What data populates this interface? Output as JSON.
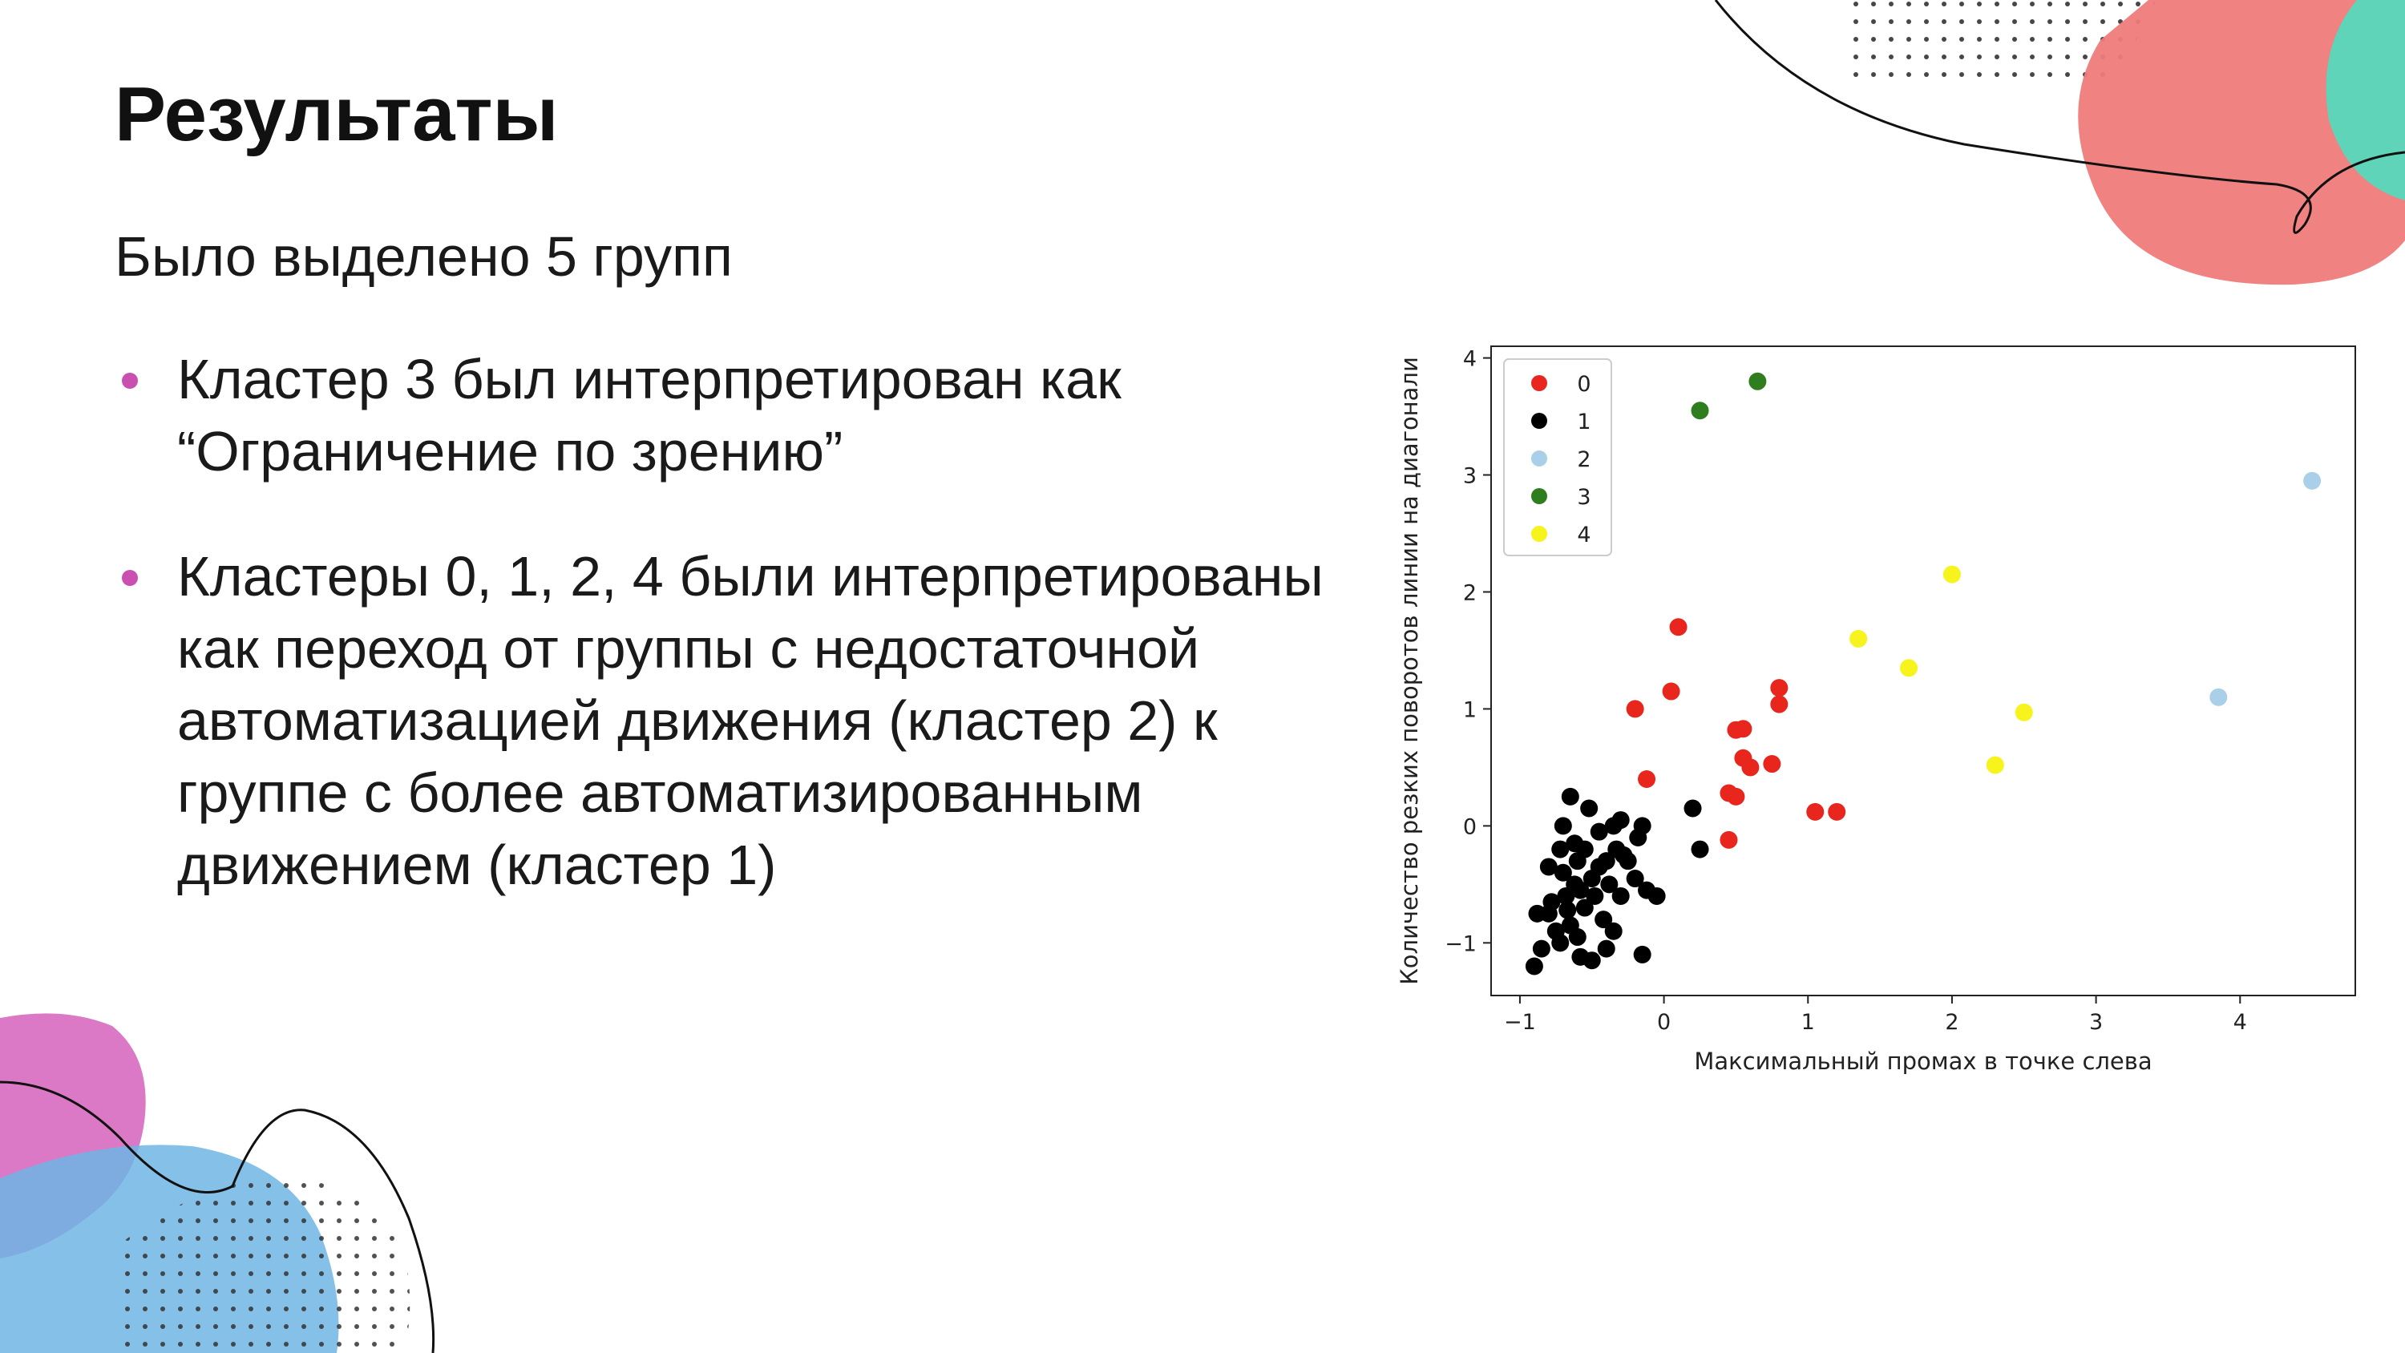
{
  "slide": {
    "title": "Результаты",
    "subtitle": "Было выделено 5 групп",
    "bullets": [
      {
        "text": "Кластер 3 был интерпретирован как “Ограничение по зрению”"
      },
      {
        "text": "Кластеры 0, 1, 2, 4 были интерпретированы как переход от группы с недостаточной автоматизацией движения (кластер 2) к группе с более автоматизированным движением (кластер 1)"
      }
    ],
    "colors": {
      "bullet": "#c94fb0",
      "decor_coral": "#ef7b7b",
      "decor_mint": "#5fd4b8",
      "decor_pink": "#d86ac0",
      "decor_blue": "#6fb5e4"
    }
  },
  "chart_data": {
    "type": "scatter",
    "title": "",
    "xlabel": "Максимальный промах в точке слева",
    "ylabel": "Количество резких поворотов линии на диагонали",
    "xlim": [
      -1.2,
      4.8
    ],
    "ylim": [
      -1.45,
      4.1
    ],
    "x_ticks": [
      -1,
      0,
      1,
      2,
      3,
      4
    ],
    "x_tick_labels": [
      "−1",
      "0",
      "1",
      "2",
      "3",
      "4"
    ],
    "y_ticks": [
      -1,
      0,
      1,
      2,
      3,
      4
    ],
    "y_tick_labels": [
      "−1",
      "0",
      "1",
      "2",
      "3",
      "4"
    ],
    "grid": false,
    "legend_position": "top-left",
    "series": [
      {
        "name": "0",
        "color": "#e8261e",
        "points": [
          [
            0.1,
            1.7
          ],
          [
            -0.2,
            1.0
          ],
          [
            0.05,
            1.15
          ],
          [
            -0.12,
            0.4
          ],
          [
            0.5,
            0.82
          ],
          [
            0.55,
            0.83
          ],
          [
            0.8,
            1.18
          ],
          [
            0.8,
            1.04
          ],
          [
            0.55,
            0.58
          ],
          [
            0.6,
            0.5
          ],
          [
            0.75,
            0.53
          ],
          [
            0.5,
            0.25
          ],
          [
            0.45,
            0.28
          ],
          [
            0.45,
            -0.12
          ],
          [
            1.05,
            0.12
          ],
          [
            1.2,
            0.12
          ]
        ]
      },
      {
        "name": "1",
        "color": "#000000",
        "points": [
          [
            -0.9,
            -1.2
          ],
          [
            -0.85,
            -1.05
          ],
          [
            -0.8,
            -0.75
          ],
          [
            -0.78,
            -0.65
          ],
          [
            -0.75,
            -0.9
          ],
          [
            -0.72,
            -1.0
          ],
          [
            -0.7,
            -0.4
          ],
          [
            -0.68,
            -0.6
          ],
          [
            -0.65,
            -0.85
          ],
          [
            -0.62,
            -0.5
          ],
          [
            -0.6,
            -0.3
          ],
          [
            -0.6,
            -0.95
          ],
          [
            -0.58,
            -1.12
          ],
          [
            -0.55,
            -0.7
          ],
          [
            -0.55,
            -0.2
          ],
          [
            -0.52,
            0.15
          ],
          [
            -0.5,
            -0.45
          ],
          [
            -0.5,
            -1.15
          ],
          [
            -0.48,
            -0.6
          ],
          [
            -0.45,
            -0.05
          ],
          [
            -0.42,
            -0.8
          ],
          [
            -0.4,
            -1.05
          ],
          [
            -0.38,
            -0.5
          ],
          [
            -0.35,
            0.0
          ],
          [
            -0.33,
            -0.2
          ],
          [
            -0.3,
            -0.6
          ],
          [
            -0.28,
            -0.25
          ],
          [
            -0.25,
            -0.3
          ],
          [
            -0.2,
            -0.45
          ],
          [
            -0.18,
            -0.1
          ],
          [
            -0.15,
            -1.1
          ],
          [
            -0.12,
            -0.55
          ],
          [
            -0.05,
            -0.6
          ],
          [
            -0.65,
            0.25
          ],
          [
            -0.7,
            0.0
          ],
          [
            -0.62,
            -0.15
          ],
          [
            -0.8,
            -0.35
          ],
          [
            -0.88,
            -0.75
          ],
          [
            -0.3,
            0.05
          ],
          [
            -0.15,
            0.0
          ],
          [
            0.2,
            0.15
          ],
          [
            0.25,
            -0.2
          ],
          [
            -0.4,
            -0.3
          ],
          [
            -0.72,
            -0.2
          ],
          [
            -0.35,
            -0.9
          ],
          [
            -0.58,
            -0.55
          ],
          [
            -0.67,
            -0.72
          ],
          [
            -0.45,
            -0.35
          ]
        ]
      },
      {
        "name": "2",
        "color": "#a9d0e8",
        "points": [
          [
            4.5,
            2.95
          ],
          [
            3.85,
            1.1
          ]
        ]
      },
      {
        "name": "3",
        "color": "#2e7d1e",
        "points": [
          [
            0.65,
            3.8
          ],
          [
            0.25,
            3.55
          ]
        ]
      },
      {
        "name": "4",
        "color": "#f7f31d",
        "points": [
          [
            2.0,
            2.15
          ],
          [
            1.35,
            1.6
          ],
          [
            1.7,
            1.35
          ],
          [
            2.5,
            0.97
          ],
          [
            2.3,
            0.52
          ]
        ]
      }
    ]
  }
}
